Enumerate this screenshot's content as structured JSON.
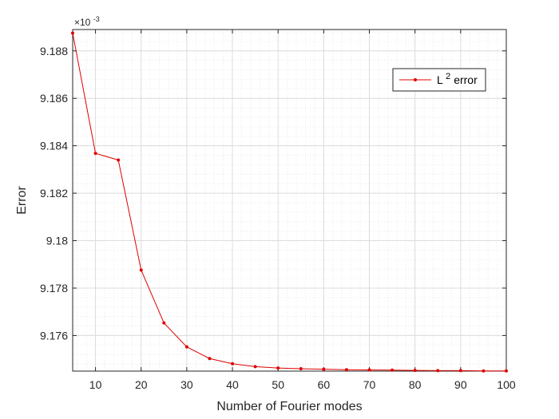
{
  "chart_data": {
    "type": "line",
    "xlabel": "Number of Fourier modes",
    "ylabel": "Error",
    "xlim": [
      5,
      100
    ],
    "ylim": [
      9.1745,
      9.1889
    ],
    "x_ticks": [
      10,
      20,
      30,
      40,
      50,
      60,
      70,
      80,
      90,
      100
    ],
    "x_tick_labels": [
      "10",
      "20",
      "30",
      "40",
      "50",
      "60",
      "70",
      "80",
      "90",
      "100"
    ],
    "y_ticks": [
      9.176,
      9.178,
      9.18,
      9.182,
      9.184,
      9.186,
      9.188
    ],
    "y_tick_labels": [
      "9.176",
      "9.178",
      "9.18",
      "9.182",
      "9.184",
      "9.186",
      "9.188"
    ],
    "y_exponent_label": {
      "base": "×10",
      "exponent": "-3"
    },
    "grid": true,
    "minor_grid": true,
    "legend_position": "top-right",
    "series": [
      {
        "name": "L",
        "name_superscript": "2",
        "name_suffix": " error",
        "color": "#e00000",
        "marker": "dot",
        "x": [
          5,
          10,
          15,
          20,
          25,
          30,
          35,
          40,
          45,
          50,
          55,
          60,
          65,
          70,
          75,
          80,
          85,
          90,
          95,
          100
        ],
        "y": [
          9.18875,
          9.18368,
          9.1834,
          9.17876,
          9.17653,
          9.17552,
          9.17503,
          9.17481,
          9.17469,
          9.17463,
          9.1746,
          9.17458,
          9.17456,
          9.17455,
          9.17454,
          9.17453,
          9.17452,
          9.17452,
          9.17451,
          9.17451
        ]
      }
    ]
  }
}
